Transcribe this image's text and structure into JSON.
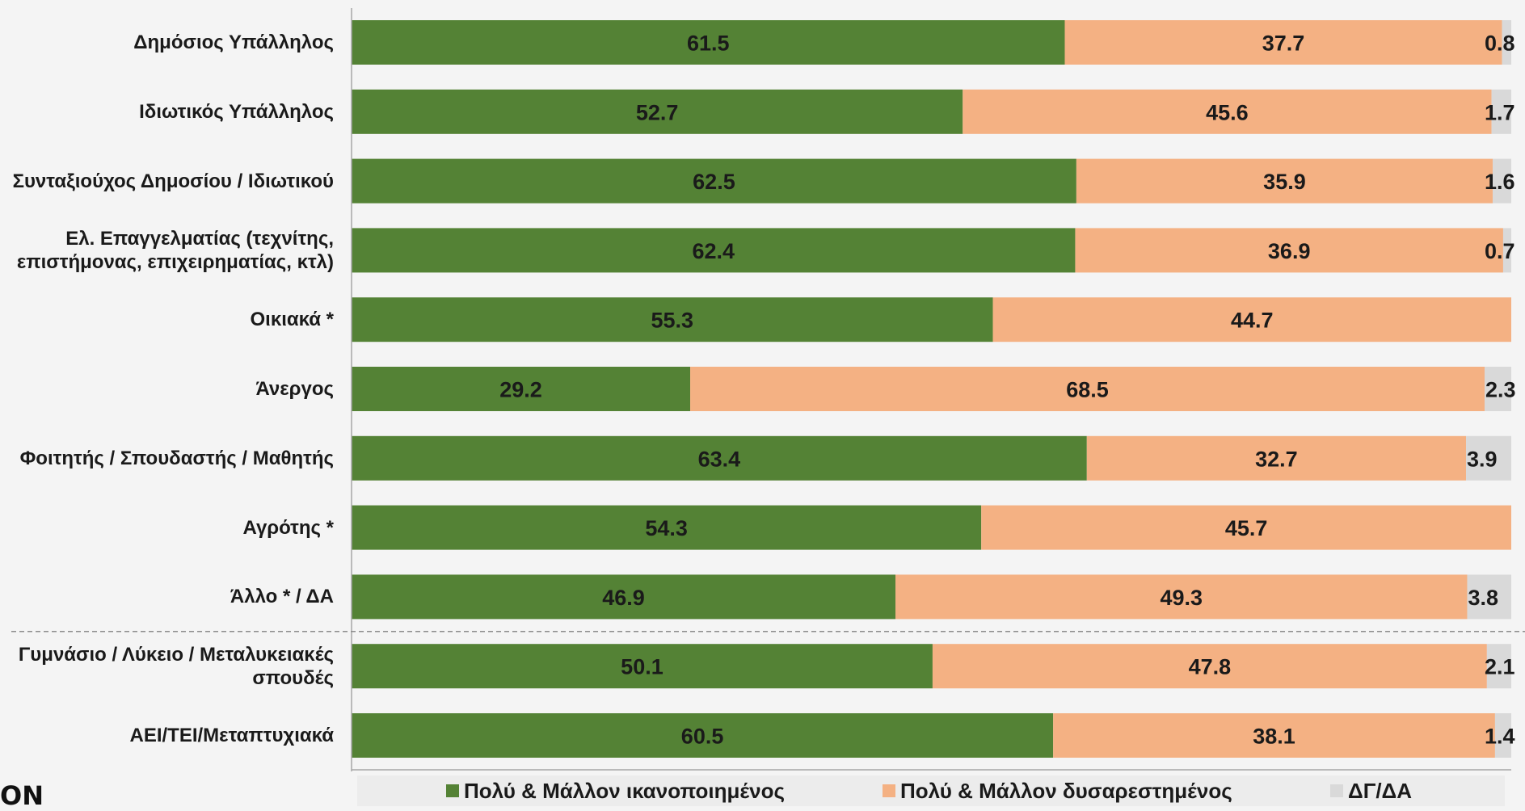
{
  "colors": {
    "satisfied": "#548235",
    "dissatisfied": "#f4b183",
    "dont_know": "#d9d9d9",
    "text": "#1a1a1a"
  },
  "logo_text": "ON",
  "chart_data": {
    "type": "bar",
    "orientation": "horizontal",
    "stacked": "100%",
    "categories": [
      "Δημόσιος Υπάλληλος",
      "Ιδιωτικός Υπάλληλος",
      "Συνταξιούχος Δημοσίου / Ιδιωτικού",
      "Ελ. Επαγγελματίας (τεχνίτης,\nεπιστήμονας, επιχειρηματίας, κτλ)",
      "Οικιακά *",
      "Άνεργος",
      "Φοιτητής / Σπουδαστής / Μαθητής",
      "Αγρότης *",
      "Άλλο *  / ΔΑ",
      "Γυμνάσιο / Λύκειο / Μεταλυκειακές\nσπουδές",
      "ΑΕΙ/ΤΕΙ/Μεταπτυχιακά"
    ],
    "series": [
      {
        "name": "Πολύ & Μάλλον ικανοποιημένος",
        "color": "#548235",
        "values": [
          61.5,
          52.7,
          62.5,
          62.4,
          55.3,
          29.2,
          63.4,
          54.3,
          46.9,
          50.1,
          60.5
        ]
      },
      {
        "name": "Πολύ & Μάλλον δυσαρεστημένος",
        "color": "#f4b183",
        "values": [
          37.7,
          45.6,
          35.9,
          36.9,
          44.7,
          68.5,
          32.7,
          45.7,
          49.3,
          47.8,
          38.1
        ]
      },
      {
        "name": "ΔΓ/ΔΑ",
        "color": "#d9d9d9",
        "values": [
          0.8,
          1.7,
          1.6,
          0.7,
          null,
          2.3,
          3.9,
          null,
          3.8,
          2.1,
          1.4
        ]
      }
    ],
    "xlim": [
      0,
      100
    ],
    "separator_after_index": 8,
    "legend_position": "bottom",
    "grid": false
  }
}
